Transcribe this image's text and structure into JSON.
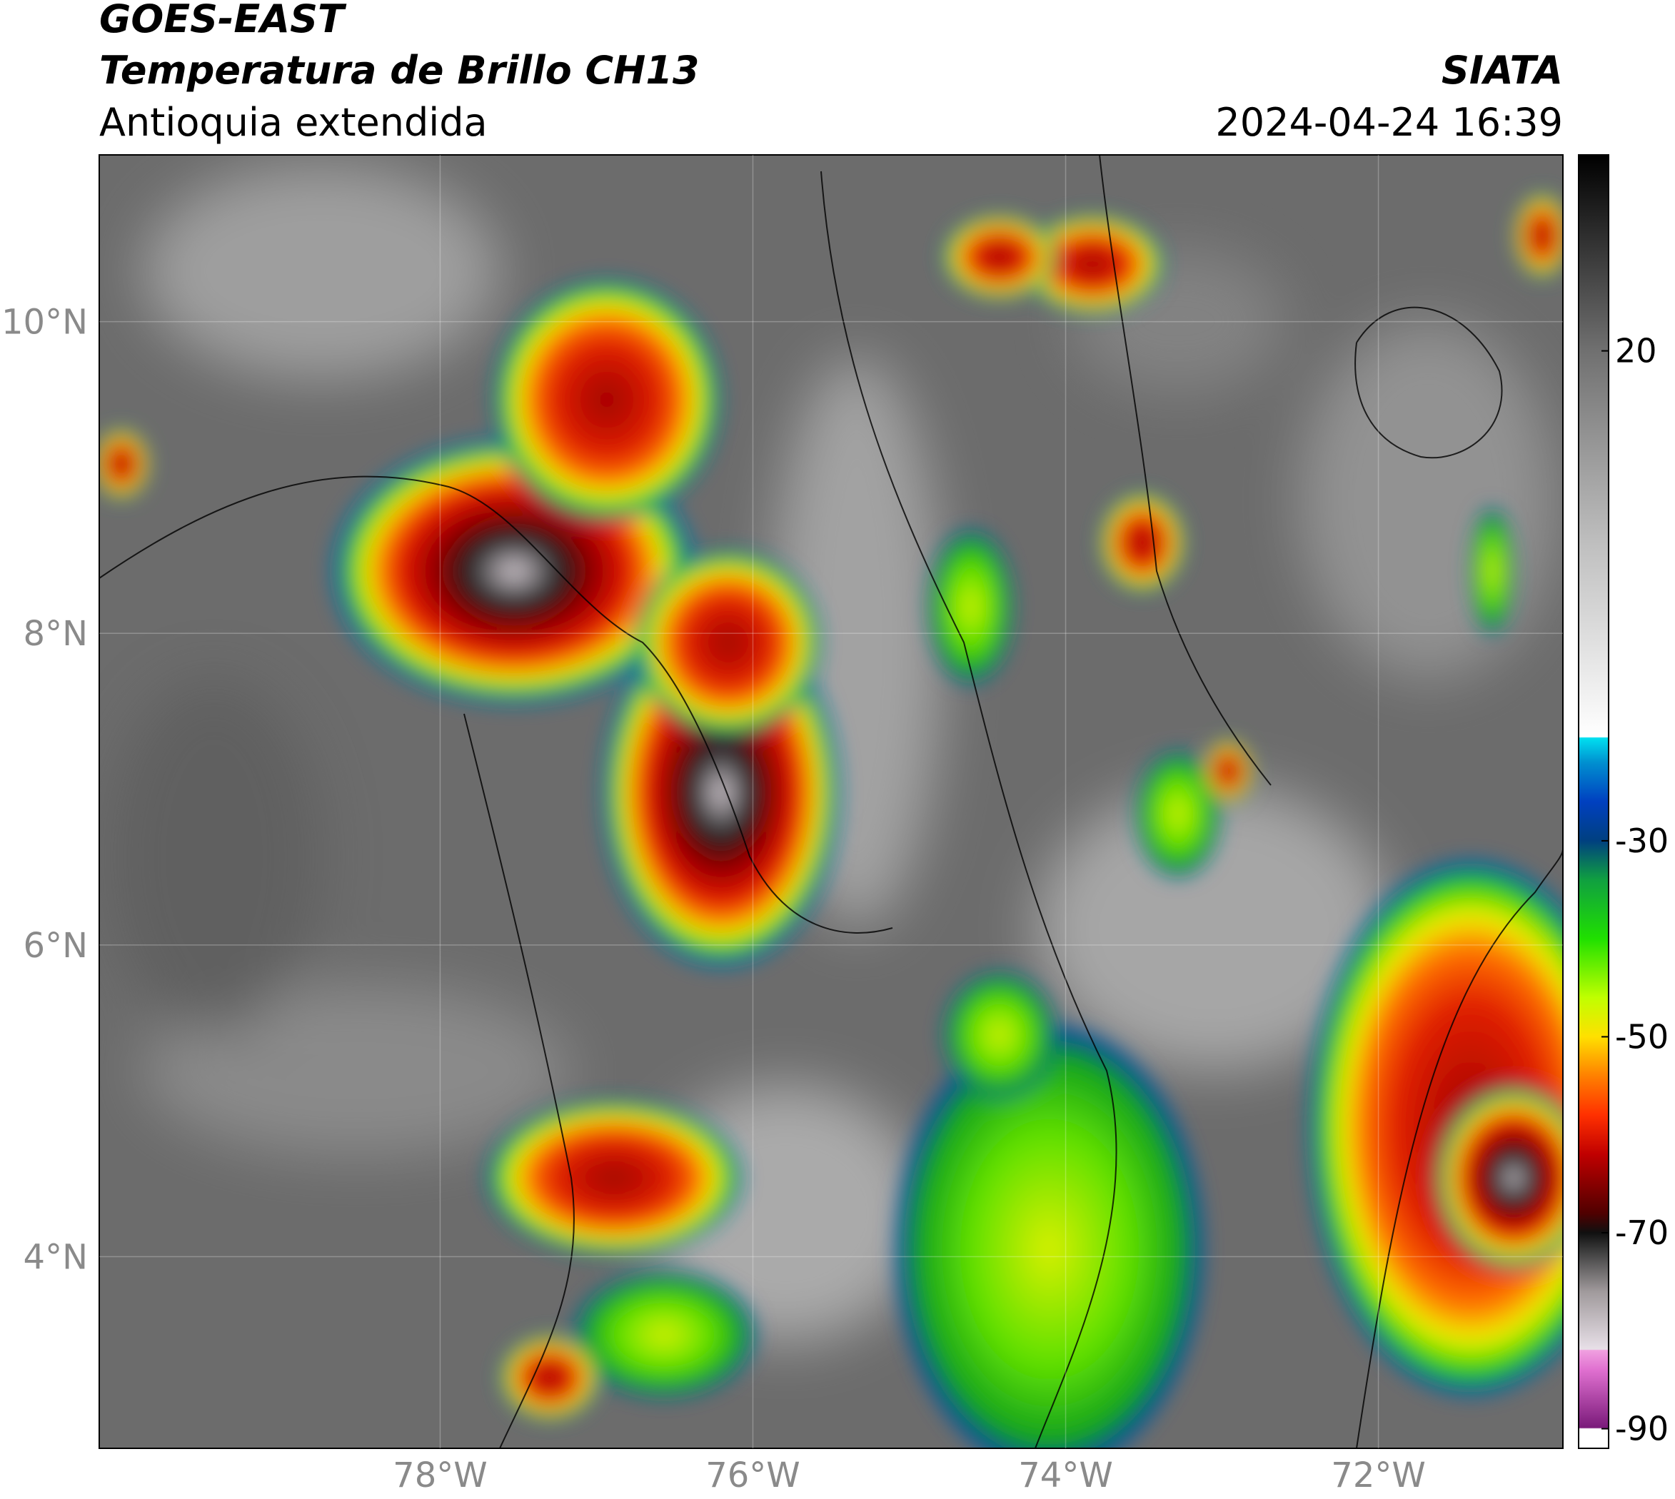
{
  "satellite": "GOES-EAST",
  "title": "Temperatura de Brillo CH13",
  "subtitle": "Antioquia extendida",
  "source": "SIATA",
  "datetime": "2024-04-24 16:39",
  "map": {
    "xlim": [
      -80.18,
      -70.82
    ],
    "ylim": [
      2.77,
      11.07
    ],
    "xticks": [
      {
        "value": -78,
        "label": "78°W"
      },
      {
        "value": -76,
        "label": "76°W"
      },
      {
        "value": -74,
        "label": "74°W"
      },
      {
        "value": -72,
        "label": "72°W"
      }
    ],
    "yticks": [
      {
        "value": 4,
        "label": "4°N"
      },
      {
        "value": 6,
        "label": "6°N"
      },
      {
        "value": 8,
        "label": "8°N"
      },
      {
        "value": 10,
        "label": "10°N"
      }
    ],
    "grid": true
  },
  "colorbar": {
    "lim": [
      -92,
      40
    ],
    "ticks": [
      20,
      -30,
      -50,
      -70,
      -90
    ],
    "colormap": [
      {
        "value": -92,
        "color": "#ffffff"
      },
      {
        "value": -90,
        "color": "#ffffff"
      },
      {
        "value": -89.9,
        "color": "#7a1a7a"
      },
      {
        "value": -84,
        "color": "#e070d0"
      },
      {
        "value": -82,
        "color": "#f0a0e0"
      },
      {
        "value": -81.9,
        "color": "#e8e0e8"
      },
      {
        "value": -76,
        "color": "#a09a9c"
      },
      {
        "value": -72,
        "color": "#404040"
      },
      {
        "value": -70,
        "color": "#101010"
      },
      {
        "value": -68,
        "color": "#500000"
      },
      {
        "value": -62,
        "color": "#c00000"
      },
      {
        "value": -58,
        "color": "#ff3000"
      },
      {
        "value": -54,
        "color": "#ff8000"
      },
      {
        "value": -50,
        "color": "#ffe000"
      },
      {
        "value": -46,
        "color": "#c0ff00"
      },
      {
        "value": -40,
        "color": "#20e000"
      },
      {
        "value": -34,
        "color": "#10a040"
      },
      {
        "value": -30,
        "color": "#004080"
      },
      {
        "value": -26,
        "color": "#0040c0"
      },
      {
        "value": -22,
        "color": "#0090d0"
      },
      {
        "value": -19.5,
        "color": "#00e0f0"
      },
      {
        "value": -19.4,
        "color": "#ffffff"
      },
      {
        "value": 0,
        "color": "#c0c0c0"
      },
      {
        "value": 20,
        "color": "#707070"
      },
      {
        "value": 40,
        "color": "#000000"
      }
    ]
  }
}
